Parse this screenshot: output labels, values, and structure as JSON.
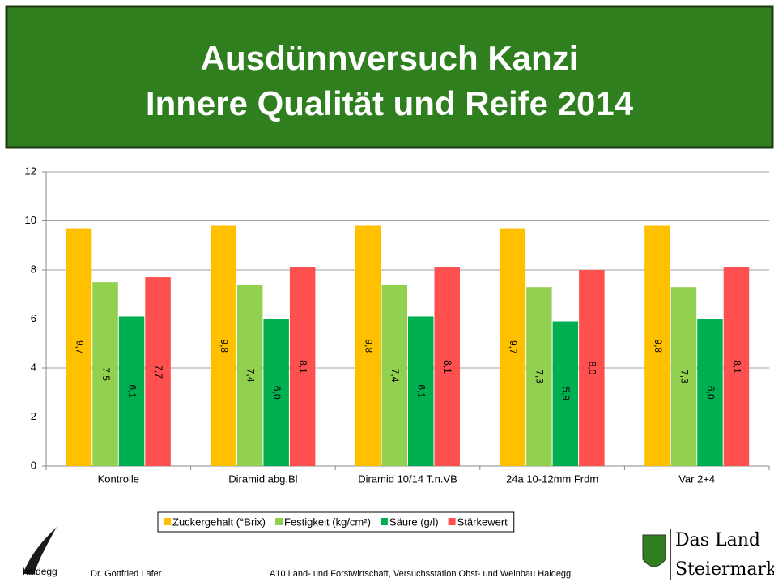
{
  "chart_data": {
    "type": "bar",
    "title": [
      "Ausdünnversuch Kanzi",
      "Innere Qualität und Reife 2014"
    ],
    "categories": [
      "Kontrolle",
      "Diramid abg.Bl",
      "Diramid 10/14 T.n.VB",
      "24a 10-12mm Frdm",
      "Var 2+4"
    ],
    "series": [
      {
        "name": "Zuckergehalt (°Brix)",
        "color": "#FFC000",
        "values": [
          9.7,
          9.8,
          9.8,
          9.7,
          9.8
        ],
        "value_labels": [
          "9,7",
          "9,8",
          "9,8",
          "9,7",
          "9,8"
        ]
      },
      {
        "name": "Festigkeit (kg/cm²)",
        "color": "#92D050",
        "values": [
          7.5,
          7.4,
          7.4,
          7.3,
          7.3
        ],
        "value_labels": [
          "7,5",
          "7,4",
          "7,4",
          "7,3",
          "7,3"
        ]
      },
      {
        "name": "Säure (g/l)",
        "color": "#00B050",
        "values": [
          6.1,
          6.0,
          6.1,
          5.9,
          6.0
        ],
        "value_labels": [
          "6,1",
          "6,0",
          "6,1",
          "5,9",
          "6,0"
        ]
      },
      {
        "name": "Stärkewert",
        "color": "#FF5050",
        "values": [
          7.7,
          8.1,
          8.1,
          8.0,
          8.1
        ],
        "value_labels": [
          "7,7",
          "8,1",
          "8,1",
          "8,0",
          "8,1"
        ]
      }
    ],
    "ylim": [
      0,
      12
    ],
    "yticks": [
      0,
      2,
      4,
      6,
      8,
      10,
      12
    ],
    "grid": true,
    "legend": "bottom"
  },
  "footer": {
    "logo": "haidegg",
    "author": "Dr. Gottfried Lafer",
    "institution": "A10 Land- und Forstwirtschaft, Versuchsstation Obst- und Weinbau Haidegg",
    "brand": [
      "Das Land",
      "Steiermark"
    ]
  }
}
